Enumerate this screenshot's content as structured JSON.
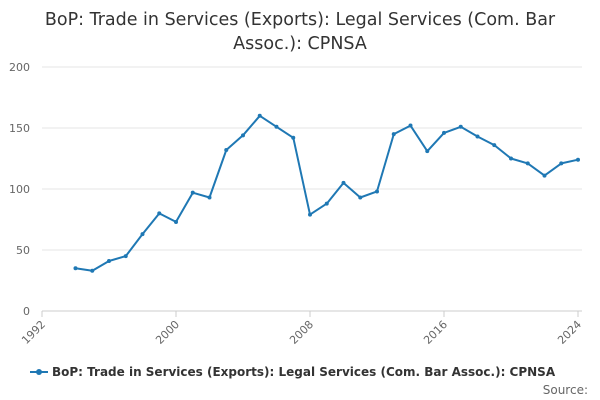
{
  "chart_data": {
    "type": "line",
    "title": "BoP: Trade in Services (Exports): Legal Services (Com. Bar Assoc.): CPNSA",
    "xlabel": "",
    "ylabel": "",
    "xlim": [
      1992,
      2024
    ],
    "ylim": [
      0,
      200
    ],
    "y_ticks": [
      0,
      50,
      100,
      150,
      200
    ],
    "x_ticks": [
      "1992",
      "2000",
      "2008",
      "2016",
      "2024"
    ],
    "grid": true,
    "legend_position": "bottom",
    "color": "#1f78b4",
    "series": [
      {
        "name": "BoP: Trade in Services (Exports): Legal Services (Com. Bar Assoc.): CPNSA",
        "x": [
          1994,
          1995,
          1996,
          1997,
          1998,
          1999,
          2000,
          2001,
          2002,
          2003,
          2004,
          2005,
          2006,
          2007,
          2008,
          2009,
          2010,
          2011,
          2012,
          2013,
          2014,
          2015,
          2016,
          2017,
          2018,
          2019,
          2020,
          2021,
          2022,
          2023,
          2024
        ],
        "values": [
          35,
          33,
          41,
          45,
          63,
          80,
          73,
          97,
          93,
          132,
          144,
          160,
          151,
          142,
          79,
          88,
          105,
          93,
          98,
          145,
          152,
          131,
          146,
          151,
          143,
          136,
          125,
          121,
          111,
          121,
          124
        ]
      }
    ]
  },
  "source_label": "Source:"
}
